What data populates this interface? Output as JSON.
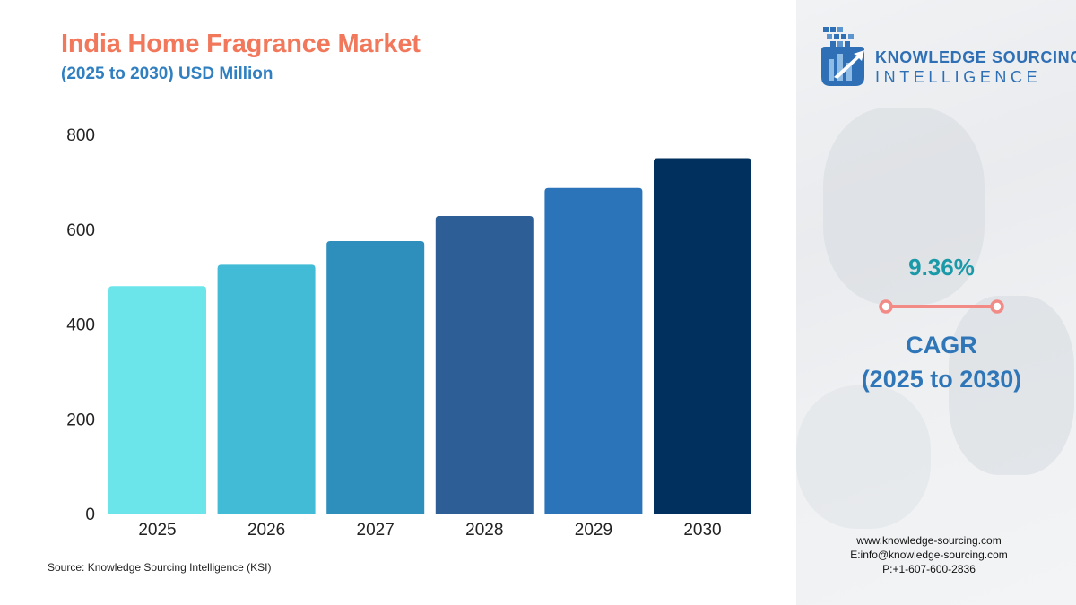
{
  "header": {
    "title": "India Home Fragrance Market",
    "subtitle": "(2025 to 2030) USD Million"
  },
  "chart_data": {
    "type": "bar",
    "title": "India Home Fragrance Market",
    "subtitle": "(2025 to 2030) USD Million",
    "xlabel": "",
    "ylabel": "",
    "categories": [
      "2025",
      "2026",
      "2027",
      "2028",
      "2029",
      "2030"
    ],
    "values": [
      480,
      525,
      575,
      628,
      687,
      750
    ],
    "ylim": [
      0,
      800
    ],
    "yticks": [
      "0",
      "200",
      "400",
      "600",
      "800"
    ],
    "grid": false,
    "legend": "none",
    "bar_colors": [
      "#6ce5ea",
      "#42bcd6",
      "#2e8fbd",
      "#2d5f96",
      "#2c74b9",
      "#02305e"
    ]
  },
  "source": "Source: Knowledge Sourcing Intelligence (KSI)",
  "brand": {
    "line1": "KNOWLEDGE SOURCING",
    "line2": "INTELLIGENCE",
    "logo_icon": "ksi-logo-icon",
    "color": "#2e6fb5"
  },
  "cagr": {
    "value": "9.36%",
    "label_line1": "CAGR",
    "label_line2": "(2025 to 2030)",
    "value_color": "#1a9aa8",
    "line_color": "#f28a86",
    "label_color": "#2f76b8"
  },
  "contact": {
    "website": "www.knowledge-sourcing.com",
    "email": "E:info@knowledge-sourcing.com",
    "phone": "P:+1-607-600-2836"
  },
  "colors": {
    "title": "#f2785c",
    "subtitle": "#2f7fc1"
  }
}
